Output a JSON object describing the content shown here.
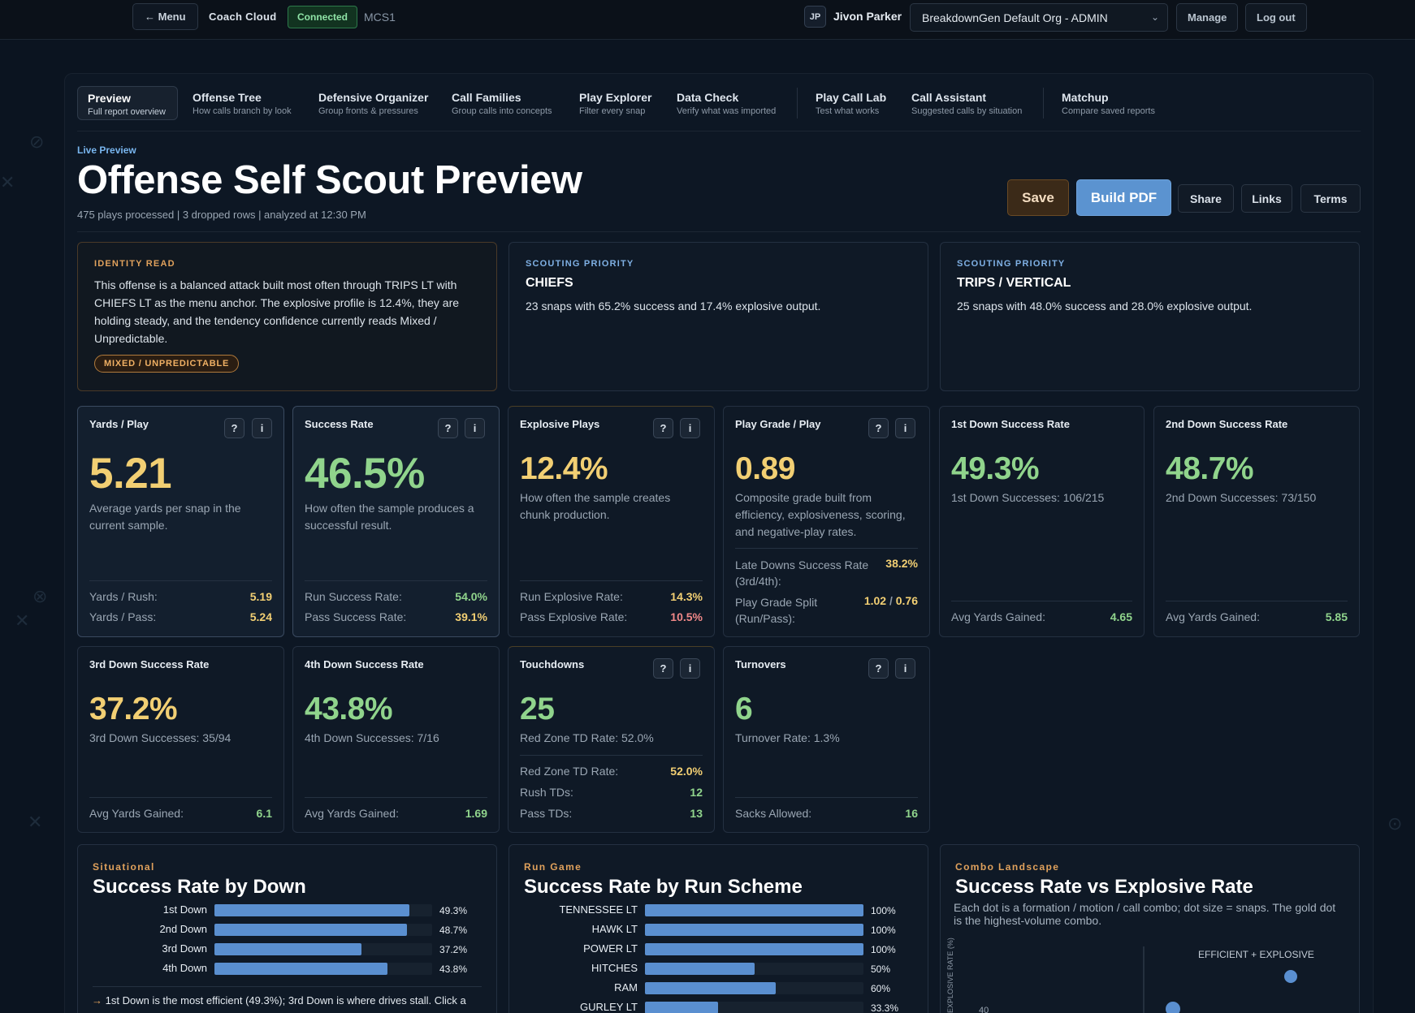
{
  "topbar": {
    "menu_label": "← Menu",
    "brand": "Coach Cloud",
    "status": "Connected",
    "code": "MCS1",
    "avatar": "JP",
    "user_name": "Jivon Parker",
    "org_selected": "BreakdownGen Default Org - ADMIN",
    "manage_label": "Manage",
    "logout_label": "Log out"
  },
  "tabs": [
    {
      "label": "Preview",
      "sub": "Full report overview"
    },
    {
      "label": "Offense Tree",
      "sub": "How calls branch by look"
    },
    {
      "label": "Defensive Organizer",
      "sub": "Group fronts & pressures"
    },
    {
      "label": "Call Families",
      "sub": "Group calls into concepts"
    },
    {
      "label": "Play Explorer",
      "sub": "Filter every snap"
    },
    {
      "label": "Data Check",
      "sub": "Verify what was imported"
    },
    {
      "label": "Play Call Lab",
      "sub": "Test what works"
    },
    {
      "label": "Call Assistant",
      "sub": "Suggested calls by situation"
    },
    {
      "label": "Matchup",
      "sub": "Compare saved reports"
    }
  ],
  "header": {
    "eyebrow": "Live Preview",
    "title": "Offense Self Scout Preview",
    "subtitle": "475 plays processed | 3 dropped rows | analyzed at 12:30 PM",
    "save": "Save",
    "build_pdf": "Build PDF",
    "share": "Share",
    "links": "Links",
    "terms": "Terms"
  },
  "insights": {
    "identity": {
      "label": "IDENTITY READ",
      "body": "This offense is a balanced attack built most often through TRIPS LT with CHIEFS LT as the menu anchor. The explosive profile is 12.4%, they are holding steady, and the tendency confidence currently reads Mixed / Unpredictable.",
      "pill": "MIXED / UNPREDICTABLE"
    },
    "priority1": {
      "label": "SCOUTING PRIORITY",
      "head": "CHIEFS",
      "body": "23 snaps with 65.2% success and 17.4% explosive output."
    },
    "priority2": {
      "label": "SCOUTING PRIORITY",
      "head": "TRIPS / VERTICAL",
      "body": "25 snaps with 48.0% success and 28.0% explosive output."
    }
  },
  "metrics": {
    "ypp": {
      "title": "Yards / Play",
      "value": "5.21",
      "desc": "Average yards per snap in the current sample.",
      "k1": "Yards / Rush:",
      "v1": "5.19",
      "k2": "Yards / Pass:",
      "v2": "5.24"
    },
    "sr": {
      "title": "Success Rate",
      "value": "46.5%",
      "desc": "How often the sample produces a successful result.",
      "k1": "Run Success Rate:",
      "v1": "54.0%",
      "k2": "Pass Success Rate:",
      "v2": "39.1%"
    },
    "exp": {
      "title": "Explosive Plays",
      "value": "12.4%",
      "desc": "How often the sample creates chunk production.",
      "k1": "Run Explosive Rate:",
      "v1": "14.3%",
      "k2": "Pass Explosive Rate:",
      "v2": "10.5%"
    },
    "pg": {
      "title": "Play Grade / Play",
      "value": "0.89",
      "desc": "Composite grade built from efficiency, explosiveness, scoring, and negative-play rates.",
      "k1": "Late Downs Success Rate (3rd/4th):",
      "v1": "38.2%",
      "k2": "Play Grade Split (Run/Pass):",
      "v2a": "1.02",
      "v2sep": "/",
      "v2b": "0.76"
    },
    "d1": {
      "title": "1st Down Success Rate",
      "value": "49.3%",
      "desc": "1st Down Successes: 106/215",
      "k1": "Avg Yards Gained:",
      "v1": "4.65"
    },
    "d2": {
      "title": "2nd Down Success Rate",
      "value": "48.7%",
      "desc": "2nd Down Successes: 73/150",
      "k1": "Avg Yards Gained:",
      "v1": "5.85"
    },
    "d3": {
      "title": "3rd Down Success Rate",
      "value": "37.2%",
      "desc": "3rd Down Successes: 35/94",
      "k1": "Avg Yards Gained:",
      "v1": "6.1"
    },
    "d4": {
      "title": "4th Down Success Rate",
      "value": "43.8%",
      "desc": "4th Down Successes: 7/16",
      "k1": "Avg Yards Gained:",
      "v1": "1.69"
    },
    "td": {
      "title": "Touchdowns",
      "value": "25",
      "desc": "Red Zone TD Rate: 52.0%",
      "k1": "Red Zone TD Rate:",
      "v1": "52.0%",
      "k2": "Rush TDs:",
      "v2": "12",
      "k3": "Pass TDs:",
      "v3": "13"
    },
    "to": {
      "title": "Turnovers",
      "value": "6",
      "desc": "Turnover Rate: 1.3%",
      "k1": "Sacks Allowed:",
      "v1": "16"
    }
  },
  "charts": {
    "down": {
      "label": "Situational",
      "title": "Success Rate by Down",
      "note_arrow": "→",
      "note": "1st Down is the most efficient (49.3%); 3rd Down is where drives stall. Click a"
    },
    "run": {
      "label": "Run Game",
      "title": "Success Rate by Run Scheme"
    },
    "scatter": {
      "label": "Combo Landscape",
      "title": "Success Rate vs Explosive Rate",
      "desc": "Each dot is a formation / motion / call combo; dot size = snaps. The gold dot is the highest-volume combo.",
      "quadrant_label": "EFFICIENT + EXPLOSIVE",
      "ylabel": "EXPLOSIVE RATE (%)",
      "ytick": "40"
    }
  },
  "chart_data": [
    {
      "type": "bar",
      "title": "Success Rate by Down",
      "categories": [
        "1st Down",
        "2nd Down",
        "3rd Down",
        "4th Down"
      ],
      "values": [
        49.3,
        48.7,
        37.2,
        43.8
      ],
      "labels": [
        "49.3%",
        "48.7%",
        "37.2%",
        "43.8%"
      ],
      "xlim": [
        0,
        55
      ],
      "orientation": "horizontal"
    },
    {
      "type": "bar",
      "title": "Success Rate by Run Scheme",
      "categories": [
        "TENNESSEE LT",
        "HAWK LT",
        "POWER LT",
        "HITCHES",
        "RAM",
        "GURLEY LT"
      ],
      "values": [
        100,
        100,
        100,
        50,
        60,
        33.3
      ],
      "labels": [
        "100%",
        "100%",
        "100%",
        "50%",
        "60%",
        "33.3%"
      ],
      "xlim": [
        0,
        100
      ],
      "orientation": "horizontal"
    },
    {
      "type": "scatter",
      "title": "Success Rate vs Explosive Rate",
      "ylabel": "EXPLOSIVE RATE (%)",
      "yticks": [
        40
      ],
      "annotations": [
        "EFFICIENT + EXPLOSIVE"
      ]
    }
  ],
  "colors": {
    "accent_blue": "#5a8fd0",
    "gold": "#f2cf73",
    "green": "#90d48c",
    "red": "#f08888",
    "orange": "#e0a15c"
  }
}
